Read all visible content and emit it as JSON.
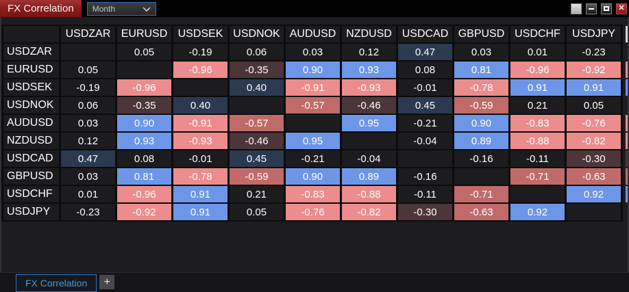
{
  "titlebar": {
    "title": "FX Correlation",
    "period": {
      "value": "Month"
    },
    "window_controls": {
      "blank_label": "",
      "close_glyph": "✕"
    }
  },
  "chart_data": {
    "type": "heatmap",
    "title": "FX Correlation",
    "period": "Month",
    "pairs": [
      "USDZAR",
      "EURUSD",
      "USDSEK",
      "USDNOK",
      "AUDUSD",
      "NZDUSD",
      "USDCAD",
      "GBPUSD",
      "USDCHF",
      "USDJPY"
    ],
    "matrix": [
      [
        null,
        0.05,
        -0.19,
        0.06,
        0.03,
        0.12,
        0.47,
        0.03,
        0.01,
        -0.23
      ],
      [
        0.05,
        null,
        -0.96,
        -0.35,
        0.9,
        0.93,
        0.08,
        0.81,
        -0.96,
        -0.92
      ],
      [
        -0.19,
        -0.96,
        null,
        0.4,
        -0.91,
        -0.93,
        -0.01,
        -0.78,
        0.91,
        0.91
      ],
      [
        0.06,
        -0.35,
        0.4,
        null,
        -0.57,
        -0.46,
        0.45,
        -0.59,
        0.21,
        0.05
      ],
      [
        0.03,
        0.9,
        -0.91,
        -0.57,
        null,
        0.95,
        -0.21,
        0.9,
        -0.83,
        -0.76
      ],
      [
        0.12,
        0.93,
        -0.93,
        -0.46,
        0.95,
        null,
        -0.04,
        0.89,
        -0.88,
        -0.82
      ],
      [
        0.47,
        0.08,
        -0.01,
        0.45,
        -0.21,
        -0.04,
        null,
        -0.16,
        -0.11,
        -0.3
      ],
      [
        0.03,
        0.81,
        -0.78,
        -0.59,
        0.9,
        0.89,
        -0.16,
        null,
        -0.71,
        -0.63
      ],
      [
        0.01,
        -0.96,
        0.91,
        0.21,
        -0.83,
        -0.88,
        -0.11,
        -0.71,
        null,
        0.92
      ],
      [
        -0.23,
        -0.92,
        0.91,
        0.05,
        -0.76,
        -0.82,
        -0.3,
        -0.63,
        0.92,
        null
      ]
    ],
    "color_scale": {
      "strong_positive": "#6d96e8",
      "moderate_positive": "#2b3a50",
      "weak_negative": "#4c3639",
      "medium_negative": "#c16a6a",
      "strong_negative": "#ec8c8c",
      "neutral": "#1c1c1e"
    }
  },
  "footer": {
    "active_tab": "FX Correlation",
    "add_tab": "+"
  }
}
